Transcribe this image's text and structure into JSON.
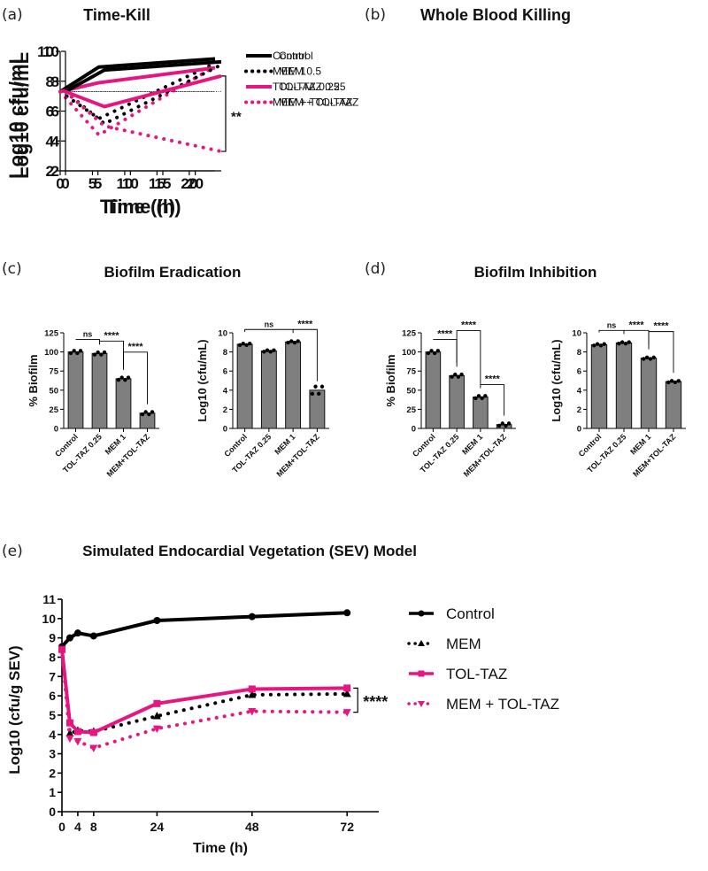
{
  "colors": {
    "black": "#000000",
    "magenta": "#e6157f",
    "bar": "#7f7f7f"
  },
  "panel_labels": [
    "(a)",
    "(b)",
    "(c)",
    "(d)",
    "(e)"
  ],
  "chart_data": [
    {
      "id": "a",
      "type": "line",
      "title": "Time-Kill",
      "xlabel": "Time (h)",
      "ylabel": "Log10 cfu/mL",
      "xlim": [
        0,
        24
      ],
      "ylim": [
        2,
        10
      ],
      "xticks": [
        0,
        5,
        10,
        15,
        20
      ],
      "yticks": [
        2,
        4,
        6,
        8,
        10
      ],
      "reference_line": 7.3,
      "legend_position": "right",
      "series": [
        {
          "name": "Control",
          "color": "#000000",
          "style": "solid",
          "x": [
            0,
            6,
            24
          ],
          "y": [
            7.3,
            8.95,
            9.5
          ]
        },
        {
          "name": "MEM 1",
          "color": "#000000",
          "style": "dotted",
          "x": [
            0,
            6,
            24
          ],
          "y": [
            7.3,
            5.5,
            9.2
          ]
        },
        {
          "name": "TOL-TAZ 0.25",
          "color": "#e6157f",
          "style": "solid",
          "x": [
            0,
            6,
            24
          ],
          "y": [
            7.3,
            7.9,
            8.9
          ]
        },
        {
          "name": "MEM + TOL-TAZ",
          "color": "#e6157f",
          "style": "dotted",
          "x": [
            0,
            6,
            24
          ],
          "y": [
            7.3,
            4.4,
            9.0
          ]
        }
      ]
    },
    {
      "id": "b",
      "type": "line",
      "title": "Whole Blood Killing",
      "xlabel": "Time (h)",
      "ylabel": "Log10 cfu/mL",
      "xlim": [
        0,
        24
      ],
      "ylim": [
        2,
        10
      ],
      "xticks": [
        0,
        5,
        10,
        15,
        20
      ],
      "yticks": [
        2,
        4,
        6,
        8,
        10
      ],
      "reference_line": 7.3,
      "legend_position": "right",
      "annotation": "**",
      "series": [
        {
          "name": "Control",
          "color": "#000000",
          "style": "solid",
          "x": [
            0,
            6,
            24
          ],
          "y": [
            7.3,
            8.75,
            9.3
          ]
        },
        {
          "name": "MEM 0.5",
          "color": "#000000",
          "style": "dotted",
          "x": [
            0,
            6,
            24
          ],
          "y": [
            7.3,
            5.15,
            9.1
          ]
        },
        {
          "name": "TOL-TAZ 0.25",
          "color": "#e6157f",
          "style": "solid",
          "x": [
            0,
            6,
            24
          ],
          "y": [
            7.3,
            6.3,
            8.35
          ]
        },
        {
          "name": "MEM + TOL-TAZ",
          "color": "#e6157f",
          "style": "dotted",
          "x": [
            0,
            6,
            24
          ],
          "y": [
            7.3,
            5.0,
            3.3
          ]
        }
      ]
    },
    {
      "id": "c1",
      "type": "bar",
      "group_title": "Biofilm Eradication",
      "ylabel": "% Biofilm",
      "ylim": [
        0,
        125
      ],
      "yticks": [
        0,
        25,
        50,
        75,
        100,
        125
      ],
      "categories": [
        "Control",
        "TOL-TAZ 0.25",
        "MEM 1",
        "MEM+TOL-TAZ"
      ],
      "values": [
        100,
        98,
        65,
        20
      ],
      "sig": [
        {
          "from": 0,
          "to": 1,
          "label": "ns"
        },
        {
          "from": 1,
          "to": 2,
          "label": "****"
        },
        {
          "from": 2,
          "to": 3,
          "label": "****"
        }
      ]
    },
    {
      "id": "c2",
      "type": "bar",
      "ylabel": "Log10 (cfu/mL)",
      "ylim": [
        0,
        10
      ],
      "yticks": [
        0,
        2,
        4,
        6,
        8,
        10
      ],
      "categories": [
        "Control",
        "TOL-TAZ 0.25",
        "MEM 1",
        "MEM+TOL-TAZ"
      ],
      "values": [
        8.8,
        8.1,
        9.05,
        4.0
      ],
      "sig": [
        {
          "from": 0,
          "to": 2,
          "label": "ns"
        },
        {
          "from": 2,
          "to": 3,
          "label": "****"
        }
      ]
    },
    {
      "id": "d1",
      "type": "bar",
      "group_title": "Biofilm Inhibition",
      "ylabel": "% Biofilm",
      "ylim": [
        0,
        125
      ],
      "yticks": [
        0,
        25,
        50,
        75,
        100,
        125
      ],
      "categories": [
        "Control",
        "TOL-TAZ 0.25",
        "MEM 1",
        "MEM+TOL-TAZ"
      ],
      "values": [
        100,
        69,
        41,
        5
      ],
      "sig": [
        {
          "from": 0,
          "to": 1,
          "label": "****"
        },
        {
          "from": 1,
          "to": 2,
          "label": "****"
        },
        {
          "from": 2,
          "to": 3,
          "label": "****"
        }
      ]
    },
    {
      "id": "d2",
      "type": "bar",
      "ylabel": "Log10 (cfu/mL)",
      "ylim": [
        0,
        10
      ],
      "yticks": [
        0,
        2,
        4,
        6,
        8,
        10
      ],
      "categories": [
        "Control",
        "TOL-TAZ 0.25",
        "MEM 1",
        "MEM+TOL-TAZ"
      ],
      "values": [
        8.75,
        8.95,
        7.35,
        4.9
      ],
      "sig": [
        {
          "from": 0,
          "to": 1,
          "label": "ns"
        },
        {
          "from": 1,
          "to": 2,
          "label": "****"
        },
        {
          "from": 2,
          "to": 3,
          "label": "****"
        }
      ]
    },
    {
      "id": "e",
      "type": "line",
      "title": "Simulated Endocardial Vegetation (SEV) Model",
      "xlabel": "Time (h)",
      "ylabel": "Log10 (cfu/g SEV)",
      "xlim": [
        0,
        80
      ],
      "ylim": [
        0,
        11
      ],
      "xticks": [
        0,
        4,
        8,
        24,
        48,
        72
      ],
      "yticks": [
        0,
        1,
        2,
        3,
        4,
        5,
        6,
        7,
        8,
        9,
        10,
        11
      ],
      "legend_position": "right",
      "annotation": "****",
      "series": [
        {
          "name": "Control",
          "color": "#000000",
          "style": "solid",
          "marker": "circle",
          "x": [
            0,
            2,
            4,
            8,
            24,
            48,
            72
          ],
          "y": [
            8.55,
            9.0,
            9.25,
            9.1,
            9.9,
            10.1,
            10.3
          ]
        },
        {
          "name": "MEM",
          "color": "#000000",
          "style": "dotted",
          "marker": "triangle-up",
          "x": [
            0,
            2,
            4,
            8,
            24,
            48,
            72
          ],
          "y": [
            8.4,
            4.05,
            4.2,
            4.15,
            4.95,
            6.05,
            6.1
          ]
        },
        {
          "name": "TOL-TAZ",
          "color": "#e6157f",
          "style": "solid",
          "marker": "square",
          "x": [
            0,
            2,
            4,
            8,
            24,
            48,
            72
          ],
          "y": [
            8.4,
            4.6,
            4.15,
            4.1,
            5.6,
            6.35,
            6.4
          ]
        },
        {
          "name": "MEM + TOL-TAZ",
          "color": "#e6157f",
          "style": "dotted",
          "marker": "triangle-down",
          "x": [
            0,
            2,
            4,
            8,
            24,
            48,
            72
          ],
          "y": [
            8.4,
            3.8,
            3.65,
            3.3,
            4.3,
            5.2,
            5.15
          ]
        }
      ]
    }
  ]
}
